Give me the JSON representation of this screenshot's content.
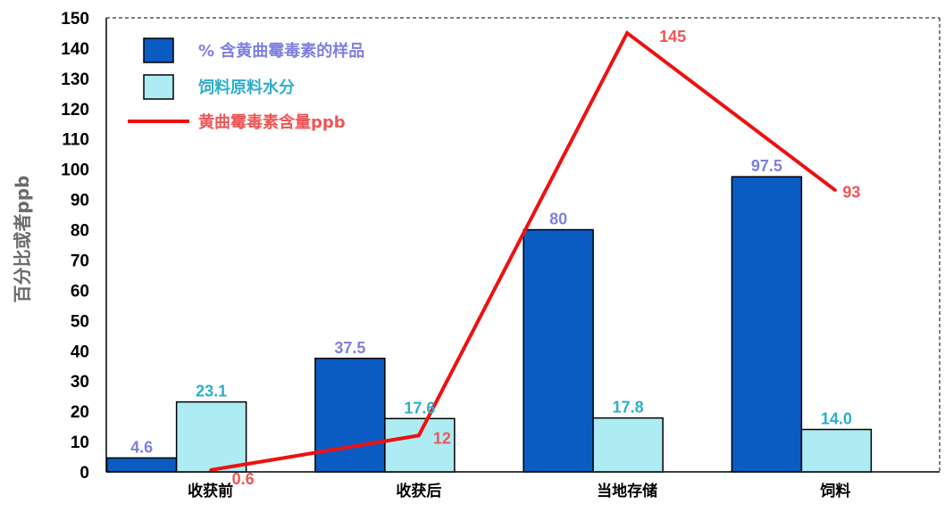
{
  "chart_data": {
    "type": "bar",
    "title": "",
    "xlabel": "",
    "ylabel": "百分比或者ppb",
    "ylim": [
      0,
      150
    ],
    "ytick_step": 10,
    "grid": false,
    "legend_position": "top-left",
    "categories": [
      "收获前",
      "收获后",
      "当地存储",
      "饲料"
    ],
    "series": [
      {
        "name": "% 含黄曲霉毒素的样品",
        "kind": "bar",
        "values": [
          4.6,
          37.5,
          80,
          97.5
        ],
        "labels": [
          "4.6",
          "37.5",
          "80",
          "97.5"
        ],
        "fill": "#0a5cc2",
        "label_color": "#7f7fe0"
      },
      {
        "name": "饲料原料水分",
        "kind": "bar",
        "values": [
          23.1,
          17.6,
          17.8,
          14.0
        ],
        "labels": [
          "23.1",
          "17.6",
          "17.8",
          "14.0"
        ],
        "fill": "#aeecf4",
        "label_color": "#2eaecb"
      },
      {
        "name": "黄曲霉毒素含量ppb",
        "kind": "line",
        "values": [
          0.6,
          12,
          145,
          93
        ],
        "labels": [
          "0.6",
          "12",
          "145",
          "93"
        ],
        "stroke": "#ee1111",
        "label_color": "#ef5555"
      }
    ]
  }
}
